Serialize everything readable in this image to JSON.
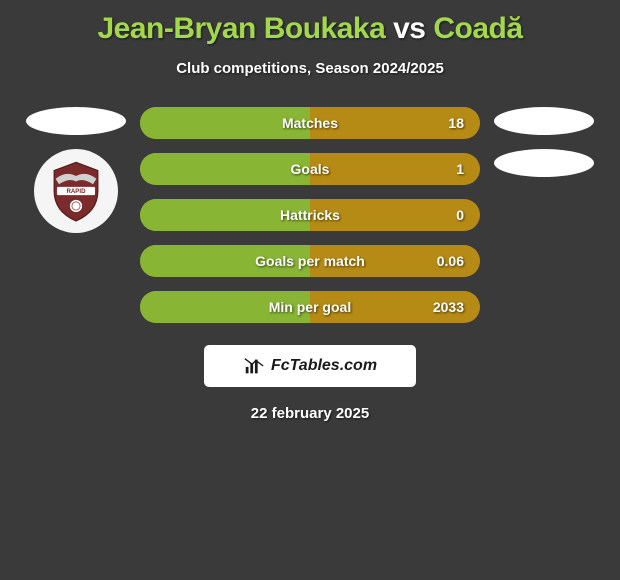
{
  "title": {
    "player1": "Jean-Bryan Boukaka",
    "vs": "vs",
    "player2": "Coadă"
  },
  "subtitle": "Club competitions, Season 2024/2025",
  "background_color": "#3a3a3a",
  "title_colors": {
    "player": "#a3d84a",
    "vs": "#ffffff"
  },
  "stat_bar": {
    "base_color": "#b58a15",
    "fill_color": "#88b534",
    "height": 32,
    "border_radius": 16,
    "gap": 14
  },
  "stats": [
    {
      "label": "Matches",
      "value": "18",
      "fill_pct": 50
    },
    {
      "label": "Goals",
      "value": "1",
      "fill_pct": 50
    },
    {
      "label": "Hattricks",
      "value": "0",
      "fill_pct": 50
    },
    {
      "label": "Goals per match",
      "value": "0.06",
      "fill_pct": 50
    },
    {
      "label": "Min per goal",
      "value": "2033",
      "fill_pct": 50
    }
  ],
  "left_side": {
    "ellipse_count": 1,
    "badge": {
      "name": "RAPID",
      "shield_color": "#7b2b2b",
      "banner_color": "#ffffff",
      "wings_color": "#d0d0d0"
    }
  },
  "right_side": {
    "ellipse_count": 2
  },
  "footer": {
    "brand": "FcTables.com",
    "icon": "bar-chart-icon",
    "box_bg": "#ffffff"
  },
  "date": "22 february 2025"
}
